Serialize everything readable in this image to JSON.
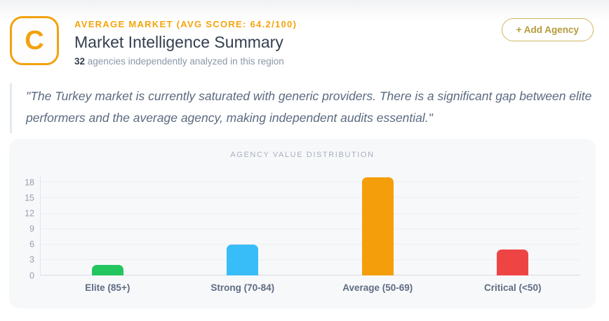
{
  "header": {
    "badge_letter": "C",
    "eyebrow": "AVERAGE MARKET (AVG SCORE: 64.2/100)",
    "title": "Market Intelligence Summary",
    "subtitle_count": "32",
    "subtitle_rest": " agencies independently analyzed in this region",
    "add_agency_label": "+ Add Agency"
  },
  "quote": "\"The Turkey market is currently saturated with generic providers. There is a significant gap between elite performers and the average agency, making independent audits essential.\"",
  "chart_data": {
    "type": "bar",
    "title": "AGENCY VALUE DISTRIBUTION",
    "categories": [
      "Elite (85+)",
      "Strong (70-84)",
      "Average (50-69)",
      "Critical (<50)"
    ],
    "values": [
      2,
      6,
      19,
      5
    ],
    "colors": [
      "#22c55e",
      "#38bdf8",
      "#f59e0b",
      "#ef4444"
    ],
    "yticks": [
      0,
      3,
      6,
      9,
      12,
      15,
      18
    ],
    "ylim": [
      0,
      19.4
    ],
    "xlabel": "",
    "ylabel": "",
    "grid": true,
    "legend": false
  },
  "colors": {
    "accent_orange": "#f2a20f",
    "button_gold": "#b59b3c",
    "quote_border": "#e4e9ef",
    "card_background": "#f7f8fa"
  }
}
